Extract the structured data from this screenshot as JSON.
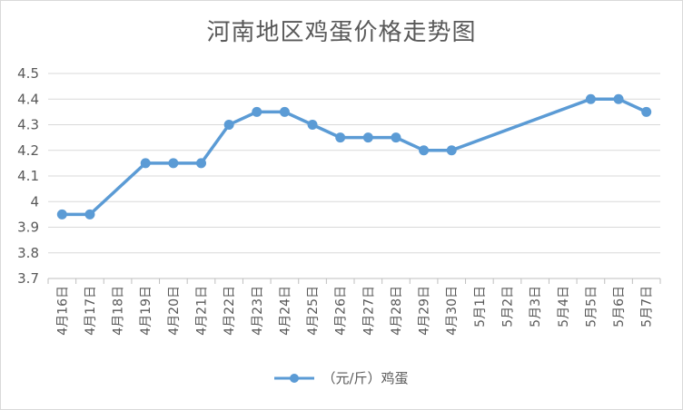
{
  "chart_data": {
    "type": "line",
    "title": "河南地区鸡蛋价格走势图",
    "xlabel": "",
    "ylabel": "",
    "ylim": [
      3.7,
      4.5
    ],
    "yticks": [
      "3.7",
      "3.8",
      "3.9",
      "4",
      "4.1",
      "4.2",
      "4.3",
      "4.4",
      "4.5"
    ],
    "categories": [
      "4月16日",
      "4月17日",
      "4月18日",
      "4月19日",
      "4月20日",
      "4月21日",
      "4月22日",
      "4月23日",
      "4月24日",
      "4月25日",
      "4月26日",
      "4月27日",
      "4月28日",
      "4月29日",
      "4月30日",
      "5月1日",
      "5月2日",
      "5月3日",
      "5月4日",
      "5月5日",
      "5月6日",
      "5月7日"
    ],
    "series": [
      {
        "name": "（元/斤）鸡蛋",
        "color": "#5b9bd5",
        "values": [
          3.95,
          3.95,
          null,
          4.15,
          4.15,
          4.15,
          4.3,
          4.35,
          4.35,
          4.3,
          4.25,
          4.25,
          4.25,
          4.2,
          4.2,
          null,
          null,
          null,
          null,
          4.4,
          4.4,
          4.35
        ]
      }
    ],
    "grid": true,
    "legend_position": "bottom"
  }
}
